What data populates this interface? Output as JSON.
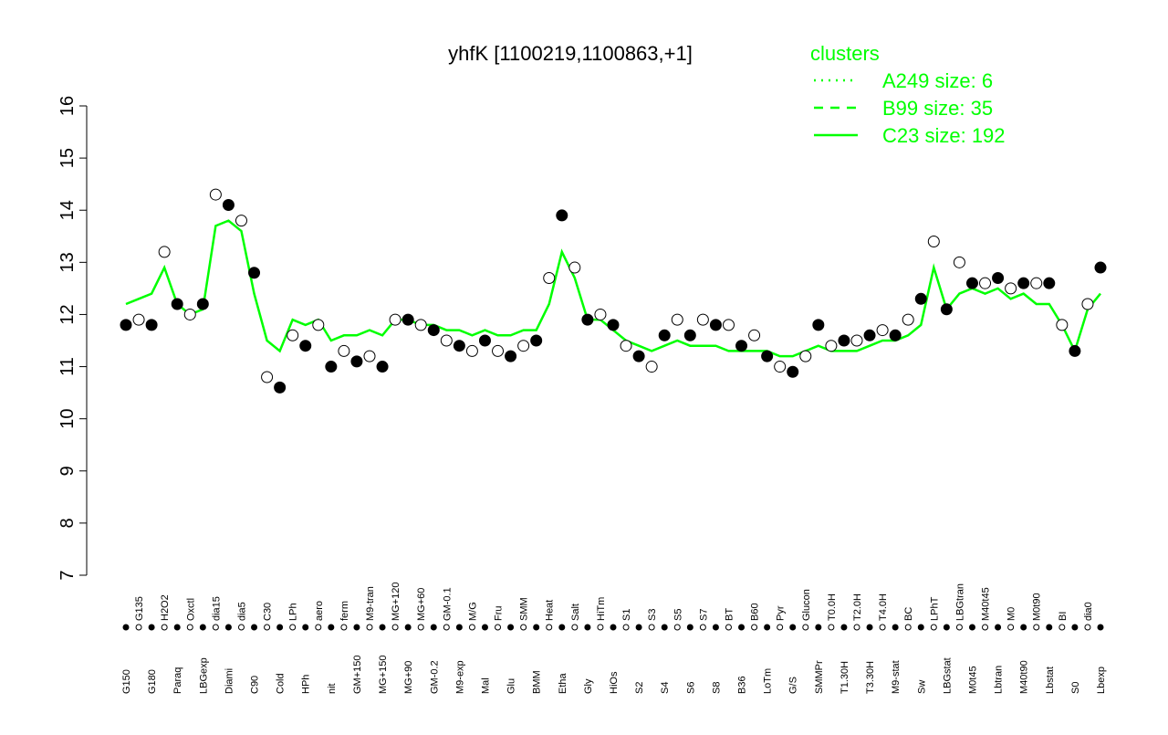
{
  "chart_data": {
    "type": "line",
    "title": "yhfK [1100219,1100863,+1]",
    "categories": [
      "G150",
      "G135",
      "G180",
      "H2O2",
      "Paraq",
      "Oxctl",
      "LBGexp",
      "dia15",
      "Diami",
      "dia5",
      "C90",
      "C30",
      "Cold",
      "LPh",
      "HPh",
      "aero",
      "nit",
      "ferm",
      "GM+150",
      "M9-tran",
      "MG+150",
      "MG+120",
      "MG+90",
      "MG+60",
      "GM-0.2",
      "GM-0.1",
      "M9-exp",
      "M/G",
      "Mal",
      "Fru",
      "Glu",
      "SMM",
      "BMM",
      "Heat",
      "Etha",
      "Salt",
      "Gly",
      "HiTm",
      "HiOs",
      "S1",
      "S2",
      "S3",
      "S4",
      "S5",
      "S6",
      "S7",
      "S8",
      "BT",
      "B36",
      "B60",
      "LoTm",
      "Pyr",
      "G/S",
      "Glucon",
      "SMMPr",
      "T0.0H",
      "T1.30H",
      "T2.0H",
      "T3.30H",
      "T4.0H",
      "M9-stat",
      "BC",
      "Sw",
      "LPhT",
      "LBGstat",
      "LBGtran",
      "M0t45",
      "M40t45",
      "Lbtran",
      "M0",
      "M40t90",
      "M0t90",
      "Lbstat",
      "BI",
      "S0",
      "dia0",
      "Lbexp"
    ],
    "values": [
      11.8,
      11.9,
      11.8,
      13.2,
      12.2,
      12.0,
      12.2,
      14.3,
      14.1,
      13.8,
      12.8,
      10.8,
      10.6,
      11.6,
      11.4,
      11.8,
      11.0,
      11.3,
      11.1,
      11.2,
      11.0,
      11.9,
      11.9,
      11.8,
      11.7,
      11.5,
      11.4,
      11.3,
      11.5,
      11.3,
      11.2,
      11.4,
      11.5,
      12.7,
      13.9,
      12.9,
      11.9,
      12.0,
      11.8,
      11.4,
      11.2,
      11.0,
      11.6,
      11.9,
      11.6,
      11.9,
      11.8,
      11.8,
      11.4,
      11.6,
      11.2,
      11.0,
      10.9,
      11.2,
      11.8,
      11.4,
      11.5,
      11.5,
      11.6,
      11.7,
      11.6,
      11.9,
      12.3,
      13.4,
      12.1,
      13.0,
      12.6,
      12.6,
      12.7,
      12.5,
      12.6,
      12.6,
      12.6,
      11.8,
      11.3,
      12.2,
      12.9
    ],
    "series": [
      {
        "name": "C23 size: 192",
        "color": "#00ff00",
        "values": [
          12.2,
          12.3,
          12.4,
          12.9,
          12.2,
          12.0,
          12.1,
          13.7,
          13.8,
          13.6,
          12.4,
          11.5,
          11.3,
          11.9,
          11.8,
          11.9,
          11.5,
          11.6,
          11.6,
          11.7,
          11.6,
          11.9,
          11.9,
          11.8,
          11.8,
          11.7,
          11.7,
          11.6,
          11.7,
          11.6,
          11.6,
          11.7,
          11.7,
          12.2,
          13.2,
          12.7,
          11.9,
          11.9,
          11.7,
          11.5,
          11.4,
          11.3,
          11.4,
          11.5,
          11.4,
          11.4,
          11.4,
          11.3,
          11.3,
          11.3,
          11.3,
          11.2,
          11.2,
          11.3,
          11.4,
          11.3,
          11.3,
          11.3,
          11.4,
          11.5,
          11.5,
          11.6,
          11.8,
          12.9,
          12.1,
          12.4,
          12.5,
          12.4,
          12.5,
          12.3,
          12.4,
          12.2,
          12.2,
          11.8,
          11.3,
          12.1,
          12.4
        ]
      }
    ],
    "legend": {
      "title": "clusters",
      "entries": [
        {
          "name": "A249 size: 6",
          "dash": "2,6"
        },
        {
          "name": "B99 size: 35",
          "dash": "10,8"
        },
        {
          "name": "C23 size: 192",
          "dash": "none"
        }
      ],
      "color": "#00ff00"
    },
    "point_color": "#000000",
    "ylim": [
      7,
      16
    ],
    "yticks": [
      7,
      8,
      9,
      10,
      11,
      12,
      13,
      14,
      15,
      16
    ]
  }
}
